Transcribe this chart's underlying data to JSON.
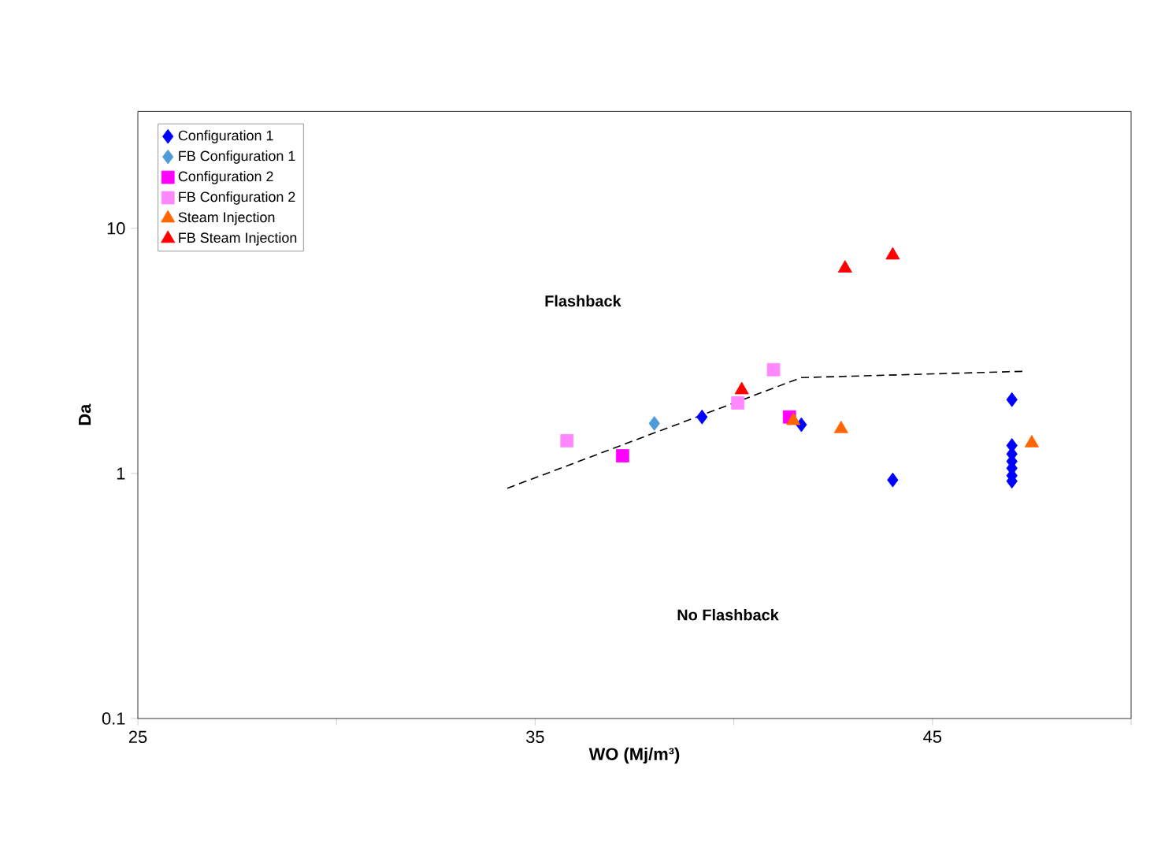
{
  "chart_data": {
    "type": "scatter",
    "xlabel": "WO (Mj/m³)",
    "ylabel": "Da",
    "log": "y",
    "xlim": [
      25,
      50
    ],
    "ylim": [
      0.1,
      30
    ],
    "xticks": [
      25,
      {
        "value": 30,
        "label": null
      },
      35,
      {
        "value": 40,
        "label": null
      },
      45,
      {
        "value": 50,
        "label": null
      }
    ],
    "yticks": [
      0.1,
      1,
      10
    ],
    "legend": "top left",
    "annotations": [
      "Flashback",
      "No Flashback"
    ],
    "series": [
      {
        "name": "Configuration 1",
        "color": "#0000ff",
        "marker": "diamond",
        "x": [
          39.2,
          41.7,
          44.0,
          47.0,
          47.0,
          47.0,
          47.0,
          47.0,
          47.0,
          47.0
        ],
        "values": [
          1.7,
          1.58,
          0.94,
          2.0,
          1.3,
          1.2,
          1.12,
          1.05,
          0.98,
          0.93
        ]
      },
      {
        "name": "FB Configuration 1",
        "color": "#4f9bd9",
        "marker": "diamond",
        "x": [
          38.0
        ],
        "values": [
          1.6
        ]
      },
      {
        "name": "Configuration 2",
        "color": "#ff00ff",
        "marker": "square",
        "x": [
          37.2,
          41.4
        ],
        "values": [
          1.18,
          1.7
        ]
      },
      {
        "name": "FB Configuration 2",
        "color": "#ff88ff",
        "marker": "square",
        "x": [
          35.8,
          40.1,
          41.0
        ],
        "values": [
          1.36,
          1.94,
          2.65
        ]
      },
      {
        "name": "Steam Injection",
        "color": "#ff6600",
        "marker": "triangle",
        "x": [
          41.5,
          42.7,
          47.5
        ],
        "values": [
          1.64,
          1.52,
          1.33
        ]
      },
      {
        "name": "FB Steam Injection",
        "color": "#ff0000",
        "marker": "triangle",
        "x": [
          40.2,
          42.8,
          44.0
        ],
        "values": [
          2.19,
          6.87,
          7.77
        ]
      },
      {
        "type": "line",
        "color": "#000000",
        "line_style": "dashed",
        "marker": "none",
        "x": [
          34.3,
          41.7,
          47.3
        ],
        "values": [
          0.87,
          2.46,
          2.61
        ]
      }
    ]
  }
}
